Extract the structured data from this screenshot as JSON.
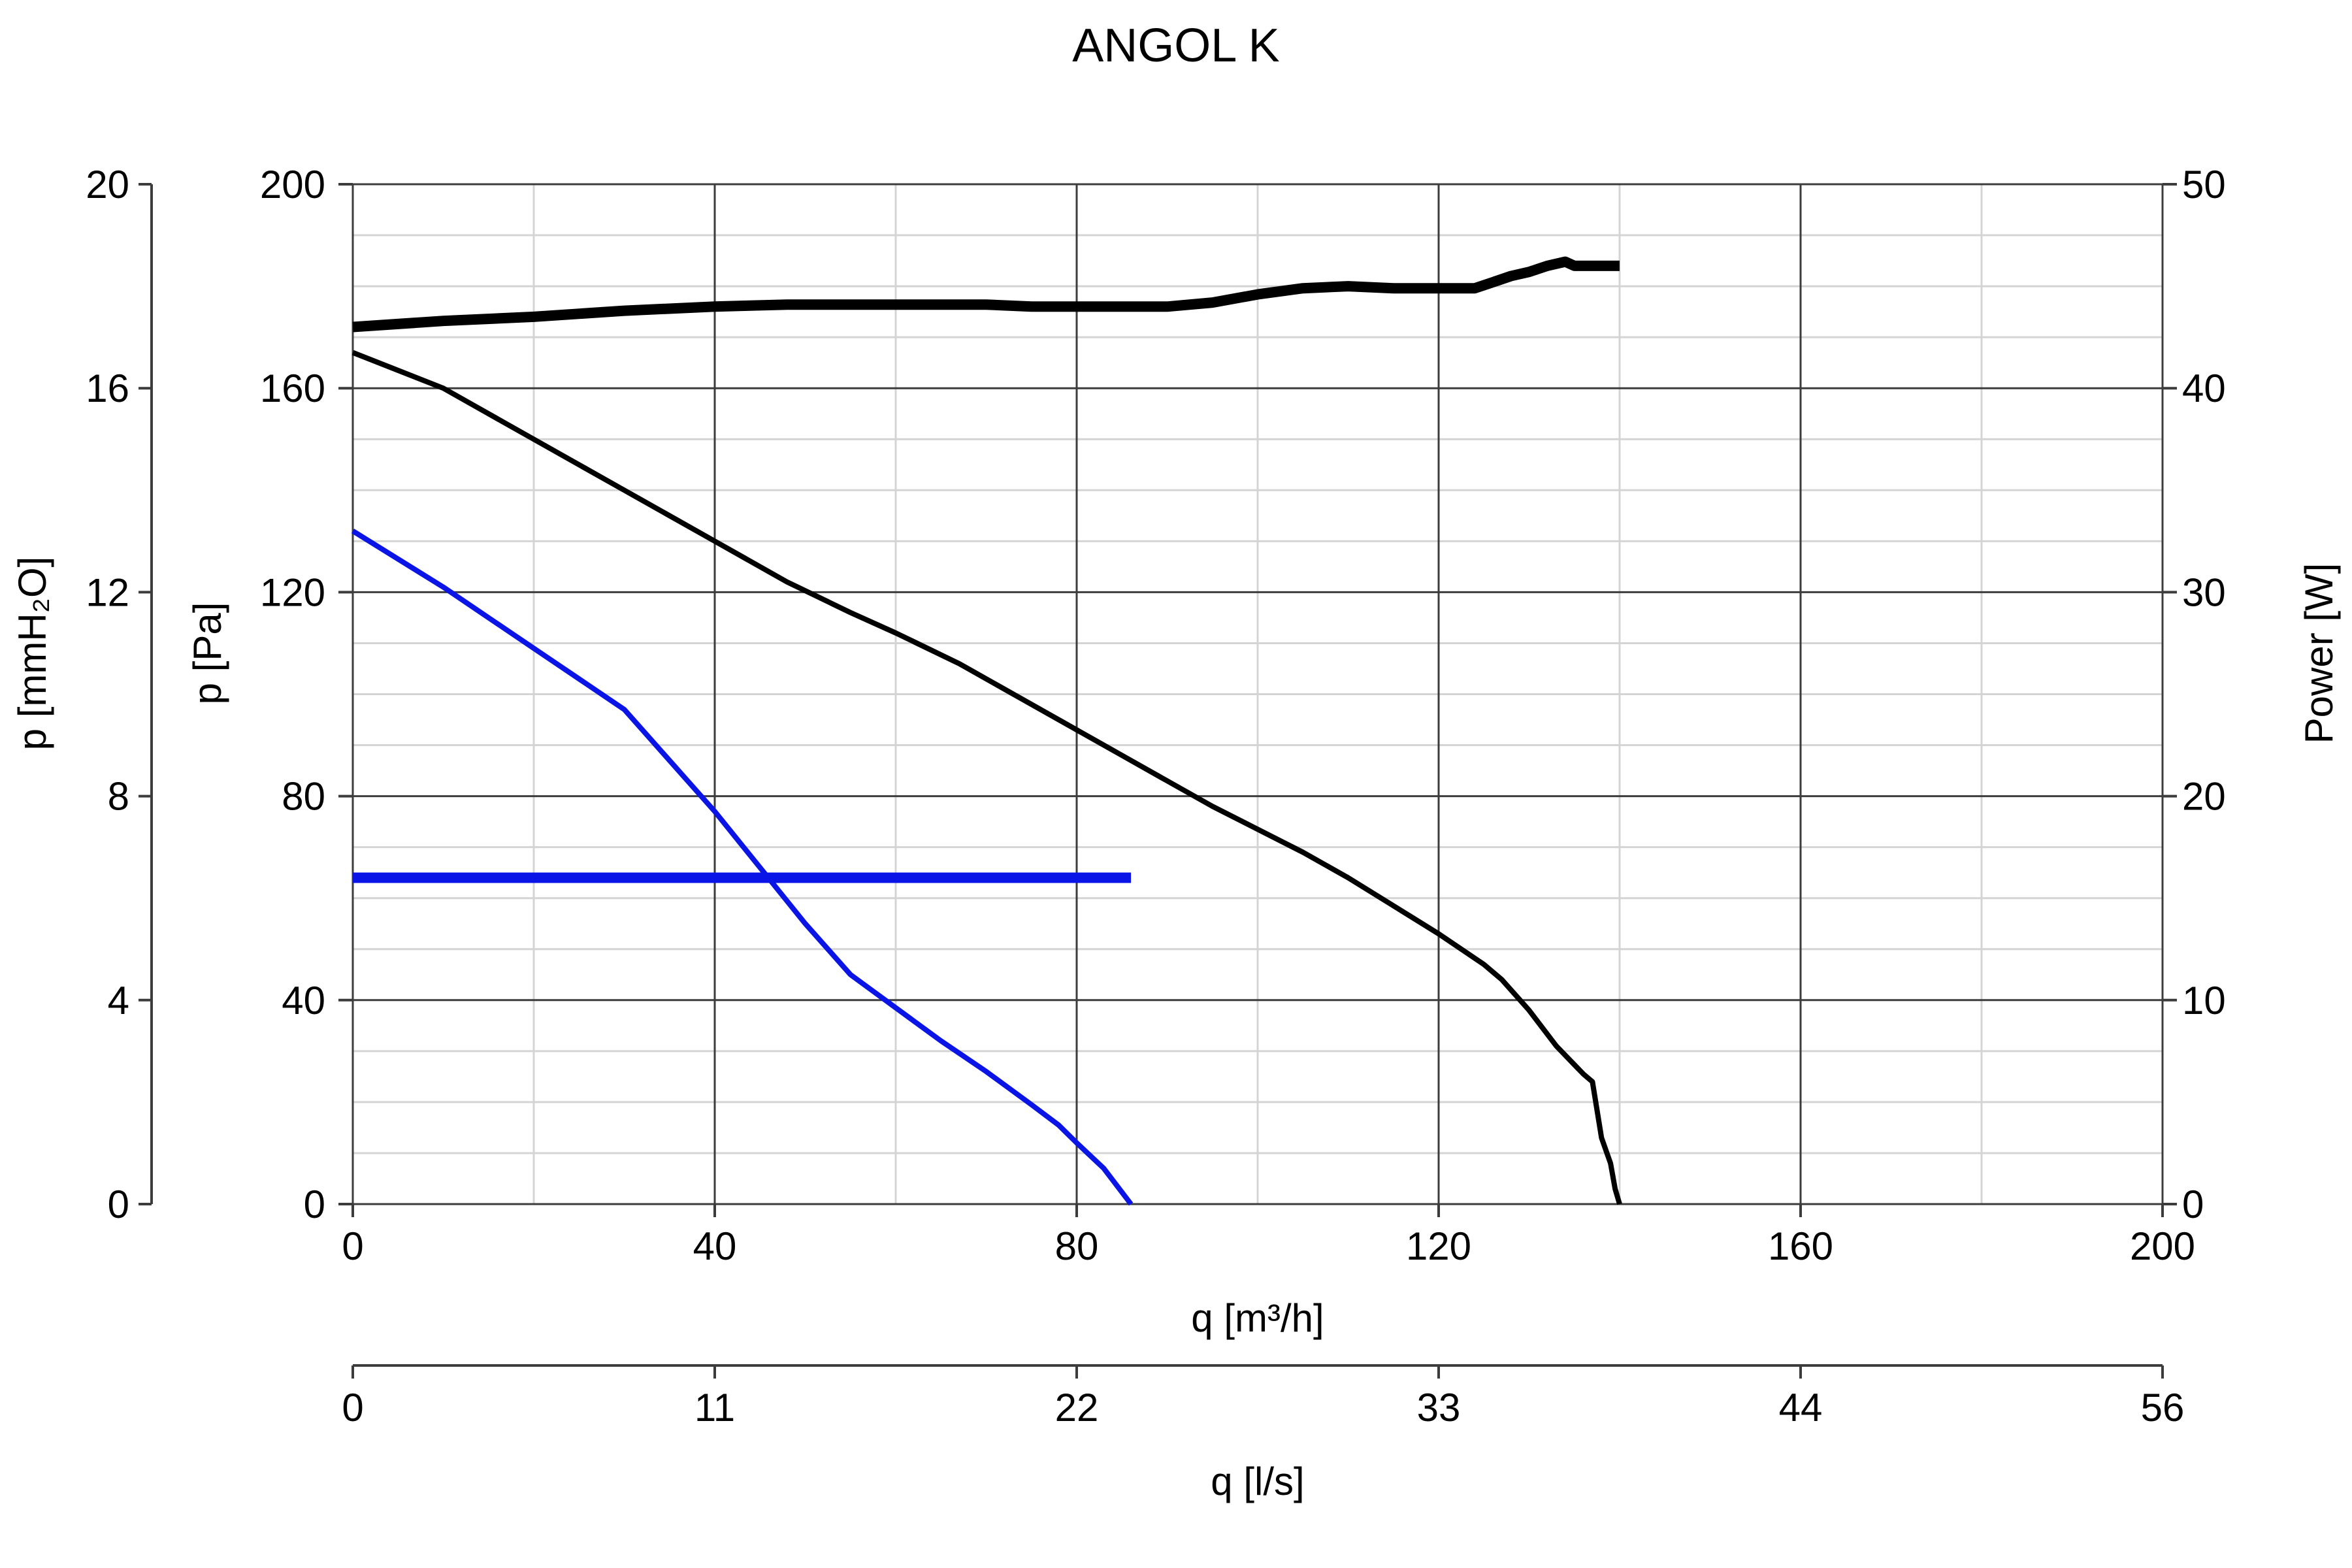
{
  "chart_data": {
    "type": "line",
    "title": "ANGOL K",
    "xlabel": "q [m³/h]",
    "x2label": "q [l/s]",
    "ylabel": "p [Pa]",
    "y2label": "p [mmH₂O]",
    "y3label": "Power [W]",
    "xlim": [
      0,
      200
    ],
    "ylim": [
      0,
      200
    ],
    "power_lim": [
      0,
      50
    ],
    "xticks": [
      "0",
      "40",
      "80",
      "120",
      "160",
      "200"
    ],
    "x2ticks": [
      "0",
      "11",
      "22",
      "33",
      "44",
      "56"
    ],
    "yticks": [
      "0",
      "40",
      "80",
      "120",
      "160",
      "200"
    ],
    "y2ticks": [
      "0",
      "4",
      "8",
      "12",
      "16",
      "20"
    ],
    "y3ticks": [
      "0",
      "10",
      "20",
      "30",
      "40",
      "50"
    ],
    "grid": true,
    "colors": {
      "black": "#000000",
      "blue": "#0a14e6"
    },
    "series": [
      {
        "axis": "pressure",
        "color": "#000000",
        "stroke": "thin",
        "points": [
          [
            0,
            167
          ],
          [
            10,
            160
          ],
          [
            20,
            150
          ],
          [
            30,
            140
          ],
          [
            40,
            130
          ],
          [
            48,
            122
          ],
          [
            55,
            116
          ],
          [
            60,
            112
          ],
          [
            67,
            106
          ],
          [
            75,
            98
          ],
          [
            80,
            93
          ],
          [
            85,
            88
          ],
          [
            90,
            83
          ],
          [
            95,
            78
          ],
          [
            100,
            73.5
          ],
          [
            105,
            69
          ],
          [
            110,
            64
          ],
          [
            115,
            58.5
          ],
          [
            120,
            53
          ],
          [
            125,
            47
          ],
          [
            127,
            44
          ],
          [
            130,
            38
          ],
          [
            133,
            31
          ],
          [
            136,
            25.5
          ],
          [
            137,
            24
          ],
          [
            138,
            13
          ],
          [
            139,
            8
          ],
          [
            139.5,
            3
          ],
          [
            140,
            0
          ]
        ]
      },
      {
        "axis": "pressure",
        "color": "#0a14e6",
        "stroke": "thin",
        "points": [
          [
            0,
            132
          ],
          [
            10,
            121
          ],
          [
            20,
            109
          ],
          [
            30,
            97
          ],
          [
            40,
            77
          ],
          [
            45,
            66
          ],
          [
            50,
            55
          ],
          [
            55,
            45
          ],
          [
            60,
            38.5
          ],
          [
            65,
            32
          ],
          [
            70,
            26
          ],
          [
            75,
            19.5
          ],
          [
            78,
            15.5
          ],
          [
            80,
            12
          ],
          [
            83,
            7
          ],
          [
            86,
            0
          ]
        ]
      },
      {
        "axis": "power",
        "color": "#000000",
        "stroke": "thick",
        "points": [
          [
            0,
            43
          ],
          [
            10,
            43.3
          ],
          [
            20,
            43.5
          ],
          [
            30,
            43.8
          ],
          [
            40,
            44
          ],
          [
            48,
            44.1
          ],
          [
            55,
            44.1
          ],
          [
            60,
            44.1
          ],
          [
            70,
            44.1
          ],
          [
            75,
            44
          ],
          [
            85,
            44
          ],
          [
            90,
            44
          ],
          [
            95,
            44.2
          ],
          [
            100,
            44.6
          ],
          [
            105,
            44.9
          ],
          [
            110,
            45
          ],
          [
            115,
            44.9
          ],
          [
            120,
            44.9
          ],
          [
            124,
            44.9
          ],
          [
            126,
            45.2
          ],
          [
            128,
            45.5
          ],
          [
            130,
            45.7
          ],
          [
            132,
            46
          ],
          [
            134,
            46.2
          ],
          [
            135,
            46
          ],
          [
            140,
            46
          ]
        ]
      },
      {
        "axis": "power",
        "color": "#0a14e6",
        "stroke": "thick",
        "points": [
          [
            0,
            16
          ],
          [
            86,
            16
          ]
        ]
      }
    ]
  }
}
